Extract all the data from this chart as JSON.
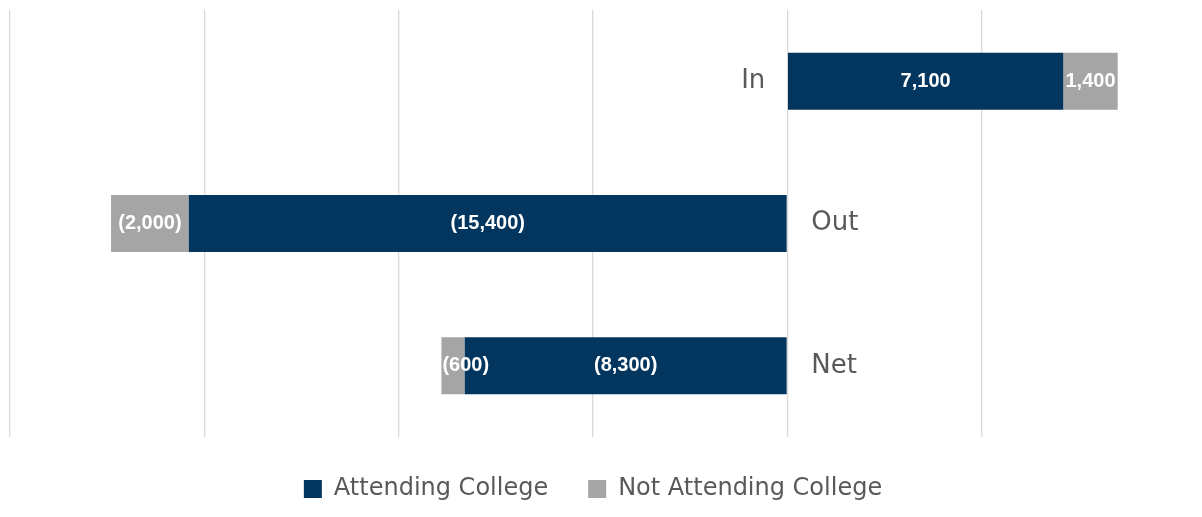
{
  "chart_data": {
    "type": "bar",
    "orientation": "horizontal",
    "stacked": true,
    "categories": [
      "In",
      "Out",
      "Net"
    ],
    "series": [
      {
        "name": "Attending College",
        "color": "#03365f",
        "values": [
          7100,
          -15400,
          -8300
        ],
        "value_labels": [
          "7,100",
          "(15,400)",
          "(8,300)"
        ]
      },
      {
        "name": "Not Attending College",
        "color": "#a5a5a5",
        "values": [
          1400,
          -2000,
          -600
        ],
        "value_labels": [
          "1,400",
          "(2,000)",
          "(600)"
        ]
      }
    ],
    "xticks": [
      {
        "value": -20000,
        "label": null
      },
      {
        "value": -15000,
        "label": null
      },
      {
        "value": -10000,
        "label": null
      },
      {
        "value": -5000,
        "label": null
      },
      {
        "value": 0,
        "label": null
      },
      {
        "value": 5000,
        "label": null
      }
    ],
    "grid": "x",
    "legend": "bottom",
    "tick_labels": "y"
  }
}
